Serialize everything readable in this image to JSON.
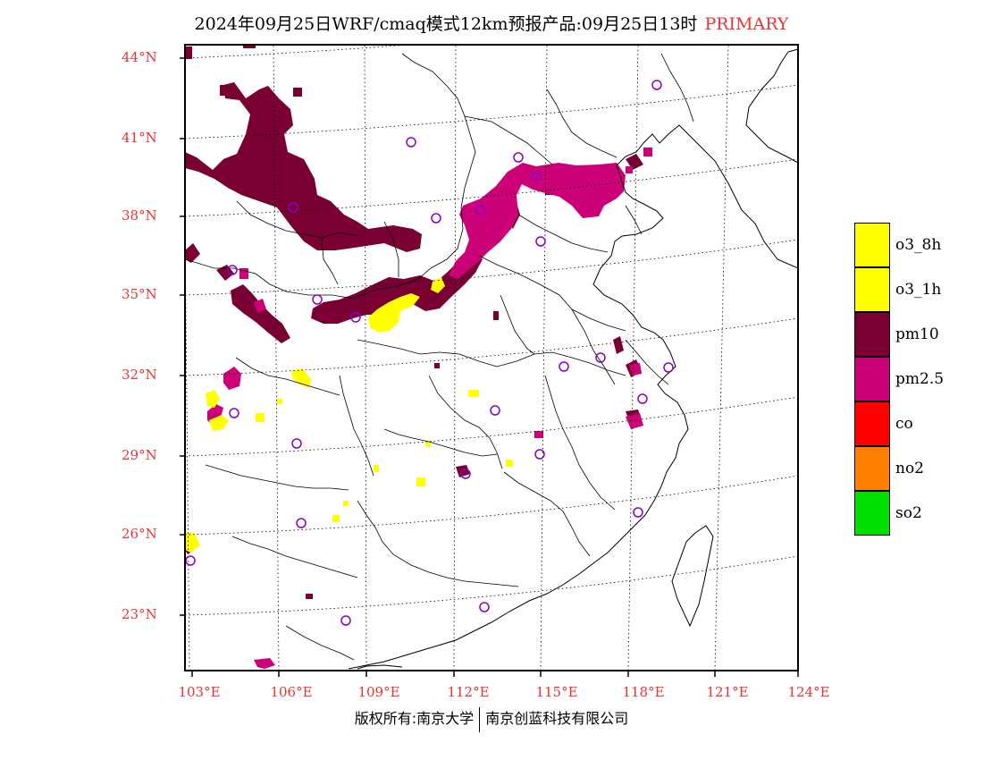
{
  "title": {
    "text": "2024年09月25日WRF/cmaq模式12km预报产品:09月25日13时",
    "tag": "PRIMARY"
  },
  "colors": {
    "accent_red": "#ee3333",
    "o3_8h": "#ffff00",
    "o3_1h": "#ffff00",
    "pm10": "#7a0033",
    "pm25": "#cc0077",
    "co": "#ff0000",
    "no2": "#ff8000",
    "so2": "#00e000",
    "station": "#8800cc"
  },
  "axes": {
    "lat_labels": [
      "44°N",
      "41°N",
      "38°N",
      "35°N",
      "32°N",
      "29°N",
      "26°N",
      "23°N"
    ],
    "lon_labels": [
      "103°E",
      "106°E",
      "109°E",
      "112°E",
      "115°E",
      "118°E",
      "121°E",
      "124°E"
    ]
  },
  "legend": {
    "items": [
      {
        "label": "o3_8h",
        "color": "#ffff00"
      },
      {
        "label": "o3_1h",
        "color": "#ffff00"
      },
      {
        "label": "pm10",
        "color": "#7a0033"
      },
      {
        "label": "pm2.5",
        "color": "#cc0077"
      },
      {
        "label": "co",
        "color": "#ff0000"
      },
      {
        "label": "no2",
        "color": "#ff8000"
      },
      {
        "label": "so2",
        "color": "#00e000"
      }
    ]
  },
  "footer": {
    "left": "版权所有:南京大学",
    "right": "南京创蓝科技有限公司"
  }
}
